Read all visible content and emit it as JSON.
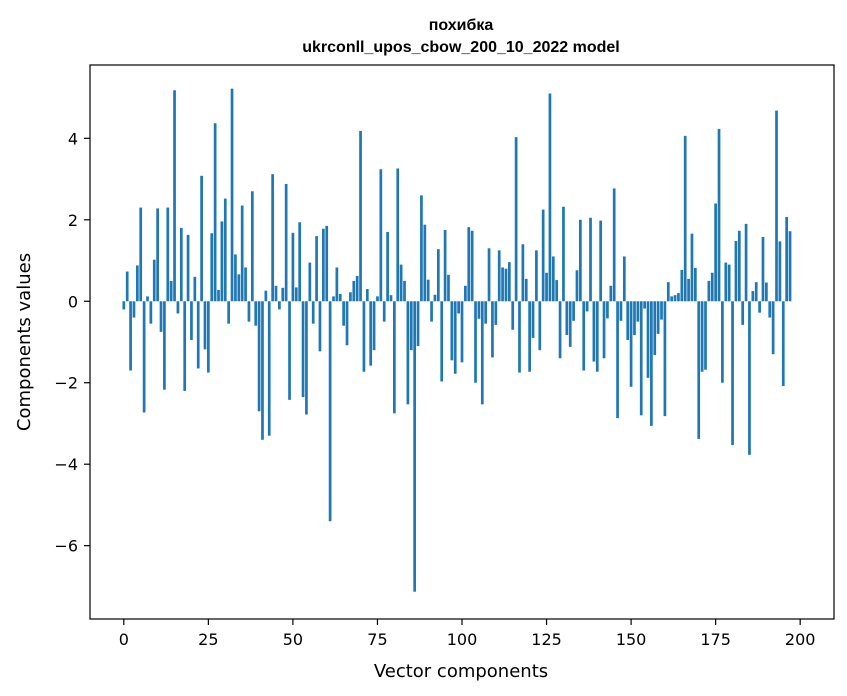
{
  "chart_data": {
    "type": "bar",
    "title": "похибка",
    "subtitle": "ukrconll_upos_cbow_200_10_2022 model",
    "xlabel": "Vector components",
    "ylabel": "Components values",
    "xlim": [
      -10,
      210
    ],
    "ylim": [
      -7.8,
      5.8
    ],
    "xticks": [
      0,
      25,
      50,
      75,
      100,
      125,
      150,
      175,
      200
    ],
    "yticks": [
      -6,
      -4,
      -2,
      0,
      2,
      4
    ],
    "ytick_labels": [
      "−6",
      "−4",
      "−2",
      "0",
      "2",
      "4"
    ],
    "grid": false,
    "bar_color": "#1f77b4",
    "series": [
      {
        "values": [
          -0.2,
          0.73,
          -1.7,
          -0.4,
          0.88,
          2.3,
          -2.73,
          0.12,
          -0.55,
          1.02,
          2.28,
          -0.75,
          -2.17,
          2.3,
          0.5,
          5.18,
          -0.3,
          1.8,
          -2.2,
          1.63,
          -0.95,
          0.6,
          -1.65,
          3.08,
          -1.18,
          -1.75,
          1.67,
          4.37,
          0.28,
          1.96,
          2.52,
          -0.55,
          5.22,
          1.15,
          0.66,
          2.35,
          0.83,
          -0.5,
          2.7,
          -0.6,
          -2.7,
          -3.4,
          0.26,
          -3.3,
          3.12,
          0.38,
          -0.2,
          0.33,
          2.88,
          -2.42,
          1.68,
          0.34,
          1.94,
          -2.35,
          -2.78,
          0.95,
          -0.55,
          1.6,
          -1.23,
          1.78,
          1.85,
          -5.4,
          0.12,
          0.83,
          0.18,
          -0.6,
          -1.08,
          0.22,
          0.5,
          0.62,
          4.18,
          -1.73,
          0.3,
          -1.58,
          -1.2,
          0.12,
          3.24,
          -0.5,
          1.7,
          0.15,
          -2.75,
          3.26,
          0.9,
          0.5,
          -2.53,
          -1.2,
          -7.13,
          -1.1,
          2.6,
          1.88,
          0.53,
          -0.5,
          0.16,
          1.28,
          -1.97,
          1.75,
          0.65,
          -1.45,
          -1.78,
          -0.3,
          -1.5,
          0.38,
          1.82,
          1.73,
          -2.0,
          -0.43,
          -2.53,
          -0.55,
          1.3,
          -1.38,
          -0.58,
          1.25,
          0.83,
          0.8,
          0.96,
          -0.7,
          4.03,
          -1.75,
          1.4,
          0.55,
          -1.73,
          -0.9,
          1.25,
          -1.2,
          2.25,
          0.7,
          5.1,
          1.1,
          0.52,
          -1.4,
          2.32,
          -0.83,
          -1.12,
          -0.48,
          0.76,
          2.0,
          -1.7,
          -0.25,
          2.05,
          -1.48,
          -1.73,
          1.98,
          -1.4,
          -0.42,
          0.38,
          2.77,
          -2.87,
          -0.48,
          1.1,
          -0.95,
          -2.1,
          -0.83,
          -0.5,
          -2.8,
          -0.18,
          -1.88,
          -3.06,
          -1.32,
          -0.8,
          -0.45,
          -2.82,
          0.47,
          0.12,
          0.15,
          0.2,
          0.77,
          4.06,
          0.55,
          1.66,
          0.82,
          -3.38,
          -1.73,
          -1.68,
          0.5,
          0.7,
          2.4,
          4.23,
          -2.0,
          0.95,
          0.9,
          -3.53,
          1.48,
          1.73,
          -0.58,
          1.9,
          -3.77,
          0.25,
          0.47,
          -0.28,
          1.58,
          0.46,
          -0.4,
          -1.3,
          4.68,
          1.47,
          -2.08,
          2.07,
          1.72
        ]
      }
    ]
  }
}
